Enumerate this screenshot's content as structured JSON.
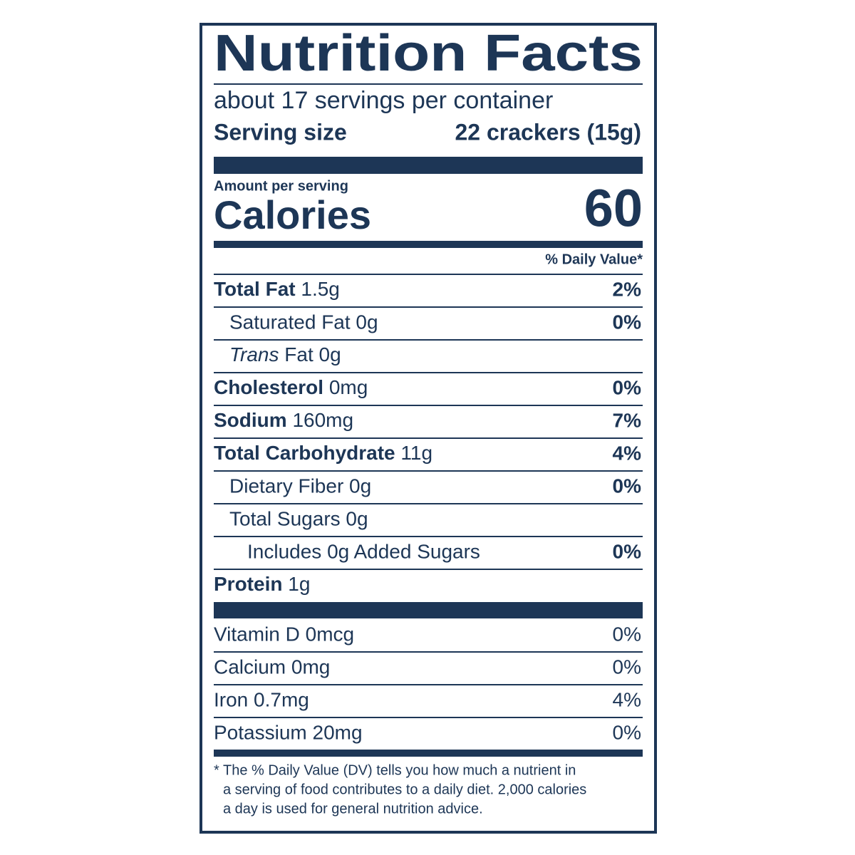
{
  "header": {
    "title": "Nutrition Facts",
    "servings": "about 17 servings per container",
    "serving_size_label": "Serving size",
    "serving_size": "22 crackers (15g)"
  },
  "amount_per_serving": "Amount per serving",
  "calories": {
    "label": "Calories",
    "value": 60
  },
  "dv_header": "% Daily Value*",
  "nutrients": [
    {
      "name": "Total Fat",
      "amount": "1.5g",
      "dv": "2%"
    },
    {
      "name": "Saturated Fat 0g",
      "dv": "0%"
    },
    {
      "name": "Trans",
      "suffix": "Fat 0g"
    },
    {
      "name": "Cholesterol",
      "amount": "0mg",
      "dv": "0%"
    },
    {
      "name": "Sodium",
      "amount": "160mg",
      "dv": "7%"
    },
    {
      "name": "Total Carbohydrate",
      "amount": "11g",
      "dv": "4%"
    },
    {
      "name": "Dietary Fiber 0g",
      "dv": "0%"
    },
    {
      "name": "Total Sugars 0g"
    },
    {
      "name": "Includes 0g Added Sugars",
      "dv": "0%"
    },
    {
      "name": "Protein",
      "amount": "1g"
    }
  ],
  "vitamins": [
    {
      "name": "Vitamin D 0mcg",
      "dv": "0%"
    },
    {
      "name": "Calcium 0mg",
      "dv": "0%"
    },
    {
      "name": "Iron 0.7mg",
      "dv": "4%"
    },
    {
      "name": "Potassium 20mg",
      "dv": "0%"
    }
  ],
  "footnote": [
    "* The % Daily Value (DV) tells you how much a nutrient in",
    "a serving of food contributes to a daily diet. 2,000 calories",
    "a day is used for general nutrition advice."
  ]
}
